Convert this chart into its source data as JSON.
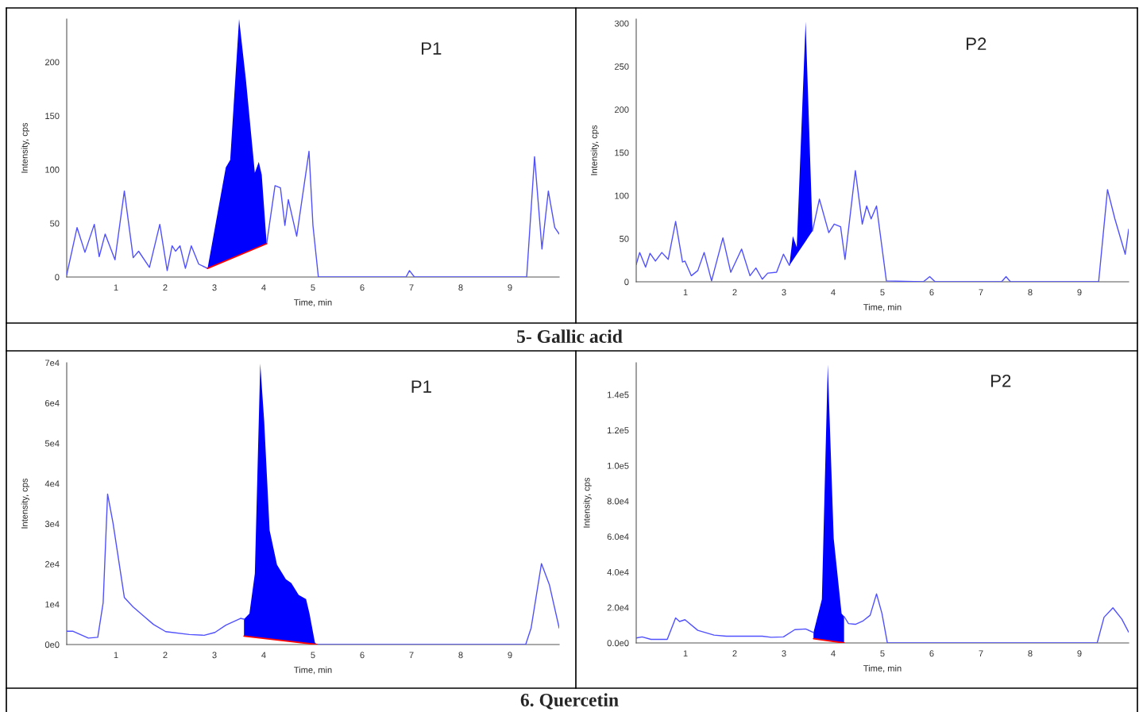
{
  "chart_data": [
    {
      "type": "line",
      "title": "P1",
      "xlabel": "Time, min",
      "ylabel": "Intensity, cps",
      "annotations": [
        "5- Gallic acid"
      ],
      "xlim": [
        0,
        10
      ],
      "xticks": [
        1,
        2,
        3,
        4,
        5,
        6,
        7,
        8,
        9
      ],
      "ylim": [
        0,
        240
      ],
      "yticks": [
        0,
        50,
        100,
        150,
        200
      ],
      "series": [
        {
          "color": "#5050ff",
          "x": [
            0,
            0.21,
            0.37,
            0.56,
            0.66,
            0.78,
            0.98,
            1.17,
            1.35,
            1.46,
            1.68,
            1.89,
            2.04,
            2.14,
            2.21,
            2.3,
            2.41,
            2.53,
            2.68,
            2.86,
            3.23,
            3.32,
            3.5,
            3.64,
            3.82,
            3.9,
            3.96,
            4.06,
            4.23,
            4.34,
            4.43,
            4.5,
            4.67,
            4.92,
            5.0,
            5.11,
            6.89,
            6.96,
            7.06,
            9.34,
            9.5,
            9.65,
            9.78,
            9.91,
            10
          ],
          "values": [
            2,
            46,
            23,
            49,
            19,
            40,
            16,
            80,
            18,
            24,
            9,
            49,
            6,
            29,
            24,
            29,
            8,
            29,
            12,
            8,
            null,
            null,
            null,
            null,
            null,
            null,
            null,
            31,
            85,
            83,
            48,
            72,
            38,
            117,
            48,
            0,
            0,
            6,
            0,
            0,
            112,
            26,
            80,
            46,
            40
          ]
        },
        {
          "type": "area",
          "color": "#0000ff",
          "x": [
            2.86,
            3.23,
            3.32,
            3.5,
            3.64,
            3.82,
            3.9,
            3.96,
            4.06
          ],
          "values": [
            8,
            102,
            109,
            240,
            183,
            97,
            107,
            95,
            31
          ]
        },
        {
          "type": "line",
          "color": "#ff0000",
          "x": [
            2.86,
            4.06
          ],
          "values": [
            8,
            31
          ]
        }
      ]
    },
    {
      "type": "line",
      "title": "P2",
      "xlabel": "Time, min",
      "ylabel": "Intensity, cps",
      "xlim": [
        0,
        10
      ],
      "xticks": [
        1,
        2,
        3,
        4,
        5,
        6,
        7,
        8,
        9
      ],
      "ylim": [
        0,
        305
      ],
      "yticks": [
        0,
        50,
        100,
        150,
        200,
        250,
        300
      ],
      "series": [
        {
          "color": "#5050ff",
          "x": [
            0,
            0.07,
            0.19,
            0.28,
            0.39,
            0.52,
            0.65,
            0.8,
            0.94,
            0.99,
            1.12,
            1.25,
            1.38,
            1.53,
            1.76,
            1.92,
            2.14,
            2.31,
            2.43,
            2.56,
            2.67,
            2.85,
            2.99,
            3.11,
            3.18,
            3.26,
            3.44,
            3.58,
            3.72,
            3.91,
            4.02,
            4.15,
            4.24,
            4.45,
            4.59,
            4.68,
            4.77,
            4.88,
            5.08,
            5.83,
            5.96,
            6.07,
            7.42,
            7.51,
            7.6,
            9.39,
            9.57,
            9.72,
            9.93,
            10
          ],
          "values": [
            20,
            34,
            17,
            33,
            24,
            34,
            26,
            70,
            23,
            24,
            7,
            13,
            34,
            1,
            51,
            11,
            38,
            7,
            16,
            3,
            10,
            11,
            32,
            19,
            null,
            null,
            null,
            59,
            96,
            57,
            67,
            64,
            26,
            129,
            67,
            88,
            73,
            88,
            1,
            0,
            6,
            0,
            0,
            6,
            0,
            0,
            107,
            73,
            32,
            61
          ]
        },
        {
          "type": "area",
          "color": "#0000ff",
          "x": [
            3.11,
            3.18,
            3.26,
            3.44,
            3.58
          ],
          "values": [
            19,
            53,
            40,
            302,
            59
          ]
        }
      ]
    },
    {
      "type": "line",
      "title": "P1",
      "xlabel": "Time, min",
      "ylabel": "Intensity, cps",
      "annotations": [
        "6. Quercetin"
      ],
      "xlim": [
        0,
        10
      ],
      "xticks": [
        1,
        2,
        3,
        4,
        5,
        6,
        7,
        8,
        9
      ],
      "ylim": [
        0,
        70000
      ],
      "yticks": [
        {
          "value": 0,
          "label": "0e0"
        },
        {
          "value": 10000,
          "label": "1e4"
        },
        {
          "value": 20000,
          "label": "2e4"
        },
        {
          "value": 30000,
          "label": "3e4"
        },
        {
          "value": 40000,
          "label": "4e4"
        },
        {
          "value": 50000,
          "label": "5e4"
        },
        {
          "value": 60000,
          "label": "6e4"
        },
        {
          "value": 70000,
          "label": "7e4"
        }
      ],
      "series": [
        {
          "color": "#5050ff",
          "x": [
            0,
            0.13,
            0.44,
            0.63,
            0.74,
            0.83,
            0.94,
            1.17,
            1.35,
            1.57,
            1.76,
            2.01,
            2.49,
            2.79,
            3.01,
            3.23,
            3.53,
            3.6,
            3.71,
            3.82,
            3.93,
            4.01,
            4.12,
            4.27,
            4.45,
            4.56,
            4.71,
            4.86,
            4.93,
            5.04,
            5.08,
            9.32,
            9.43,
            9.64,
            9.8,
            10
          ],
          "values": [
            3300,
            3300,
            1600,
            1800,
            10400,
            37400,
            30200,
            11700,
            9300,
            7000,
            5000,
            3200,
            2500,
            2300,
            3000,
            4800,
            6500,
            6300,
            null,
            null,
            null,
            null,
            null,
            null,
            null,
            null,
            null,
            null,
            null,
            null,
            0,
            0,
            4100,
            20100,
            14900,
            4100
          ]
        },
        {
          "type": "area",
          "color": "#0000ff",
          "x": [
            3.6,
            3.71,
            3.82,
            3.93,
            4.01,
            4.12,
            4.27,
            4.45,
            4.56,
            4.71,
            4.86,
            4.93,
            5.04,
            5.08
          ],
          "values": [
            6300,
            7700,
            17600,
            69800,
            55400,
            28400,
            19800,
            16200,
            15300,
            12300,
            11300,
            7700,
            500,
            0
          ]
        },
        {
          "type": "line",
          "color": "#ff0000",
          "x": [
            3.6,
            5.08
          ],
          "values": [
            2100,
            0
          ]
        }
      ]
    },
    {
      "type": "line",
      "title": "P2",
      "xlabel": "Time, min",
      "ylabel": "Intensity, cps",
      "xlim": [
        0,
        10
      ],
      "xticks": [
        1,
        2,
        3,
        4,
        5,
        6,
        7,
        8,
        9
      ],
      "ylim": [
        0,
        158000
      ],
      "yticks": [
        {
          "value": 0,
          "label": "0.0e0"
        },
        {
          "value": 20000,
          "label": "2.0e4"
        },
        {
          "value": 40000,
          "label": "4.0e4"
        },
        {
          "value": 60000,
          "label": "6.0e4"
        },
        {
          "value": 80000,
          "label": "8.0e4"
        },
        {
          "value": 100000,
          "label": "1.0e5"
        },
        {
          "value": 120000,
          "label": "1.2e5"
        },
        {
          "value": 140000,
          "label": "1.4e5"
        }
      ],
      "series": [
        {
          "color": "#5050ff",
          "x": [
            0,
            0.12,
            0.3,
            0.63,
            0.8,
            0.88,
            0.99,
            1.25,
            1.58,
            1.83,
            2.56,
            2.74,
            2.99,
            3.22,
            3.44,
            3.6,
            3.77,
            3.89,
            4.01,
            4.17,
            4.22,
            4.31,
            4.45,
            4.61,
            4.75,
            4.88,
            4.99,
            5.1,
            9.36,
            9.5,
            9.68,
            9.86,
            10
          ],
          "values": [
            2800,
            3400,
            2000,
            2000,
            14100,
            12100,
            13100,
            7100,
            4400,
            3800,
            3800,
            3200,
            3400,
            7500,
            7900,
            5900,
            null,
            null,
            null,
            null,
            15000,
            10900,
            10500,
            12500,
            15600,
            27700,
            16600,
            0,
            0,
            14500,
            19800,
            13500,
            6100
          ]
        },
        {
          "type": "area",
          "color": "#0000ff",
          "x": [
            3.6,
            3.77,
            3.89,
            4.01,
            4.17,
            4.22
          ],
          "values": [
            5900,
            24600,
            157000,
            59000,
            16600,
            15000
          ]
        },
        {
          "type": "line",
          "color": "#ff0000",
          "x": [
            3.6,
            4.22
          ],
          "values": [
            2400,
            0
          ]
        }
      ]
    }
  ]
}
